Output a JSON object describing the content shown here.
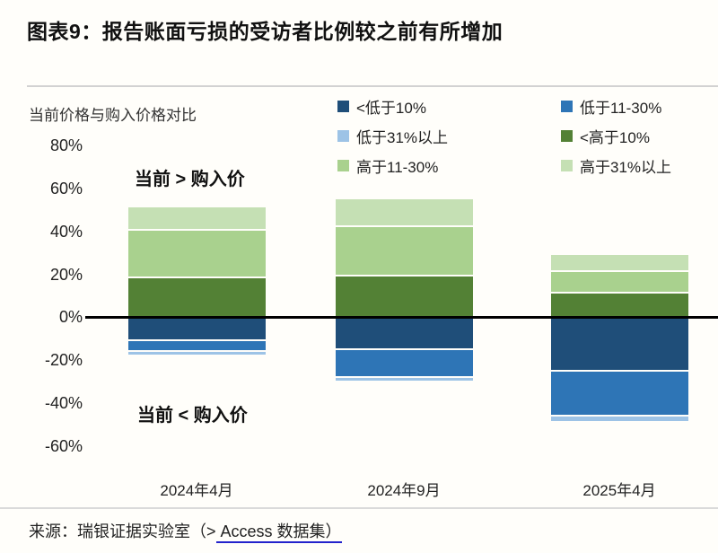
{
  "header": {
    "title": "图表9：报告账面亏损的受访者比例较之前有所增加"
  },
  "chart_data": {
    "type": "bar",
    "stacked": true,
    "title": "图表9：报告账面亏损的受访者比例较之前有所增加",
    "axis_title": "当前价格与购入价格对比",
    "categories": [
      "2024年4月",
      "2024年9月",
      "2025年4月"
    ],
    "series": [
      {
        "name": "<低于10%",
        "color": "#1F4E79",
        "stack": "below",
        "values": [
          10,
          14,
          24
        ]
      },
      {
        "name": "低于11-30%",
        "color": "#2E75B6",
        "stack": "below",
        "values": [
          5,
          13,
          21
        ]
      },
      {
        "name": "低于31%以上",
        "color": "#9DC3E6",
        "stack": "below",
        "values": [
          2,
          2,
          3
        ]
      },
      {
        "name": "<高于10%",
        "color": "#538135",
        "stack": "above",
        "values": [
          19,
          20,
          12
        ]
      },
      {
        "name": "高于11-30%",
        "color": "#A9D18E",
        "stack": "above",
        "values": [
          22,
          23,
          10
        ]
      },
      {
        "name": "高于31%以上",
        "color": "#C5E0B4",
        "stack": "above",
        "values": [
          10,
          12,
          7
        ]
      }
    ],
    "y_ticks": {
      "labels": [
        "80%",
        "60%",
        "40%",
        "20%",
        "0%",
        "-20%",
        "-40%",
        "-60%"
      ],
      "values": [
        80,
        60,
        40,
        20,
        0,
        -20,
        -40,
        -60
      ]
    },
    "ylim": [
      -60,
      80
    ],
    "grid": false,
    "legend_position": "top-right",
    "annotations": [
      {
        "text": "当前 > 购入价",
        "position": "above-zero"
      },
      {
        "text": "当前 < 购入价",
        "position": "below-zero"
      }
    ]
  },
  "annotations": {
    "above": "当前 > 购入价",
    "below": "当前 < 购入价"
  },
  "footer": {
    "source_prefix": "来源：瑞银证据实验室（>",
    "source_link": " Access 数据集）"
  },
  "colors": {
    "zero_line": "#000000",
    "link_underline": "#2323cc",
    "background": "#fffefa"
  }
}
